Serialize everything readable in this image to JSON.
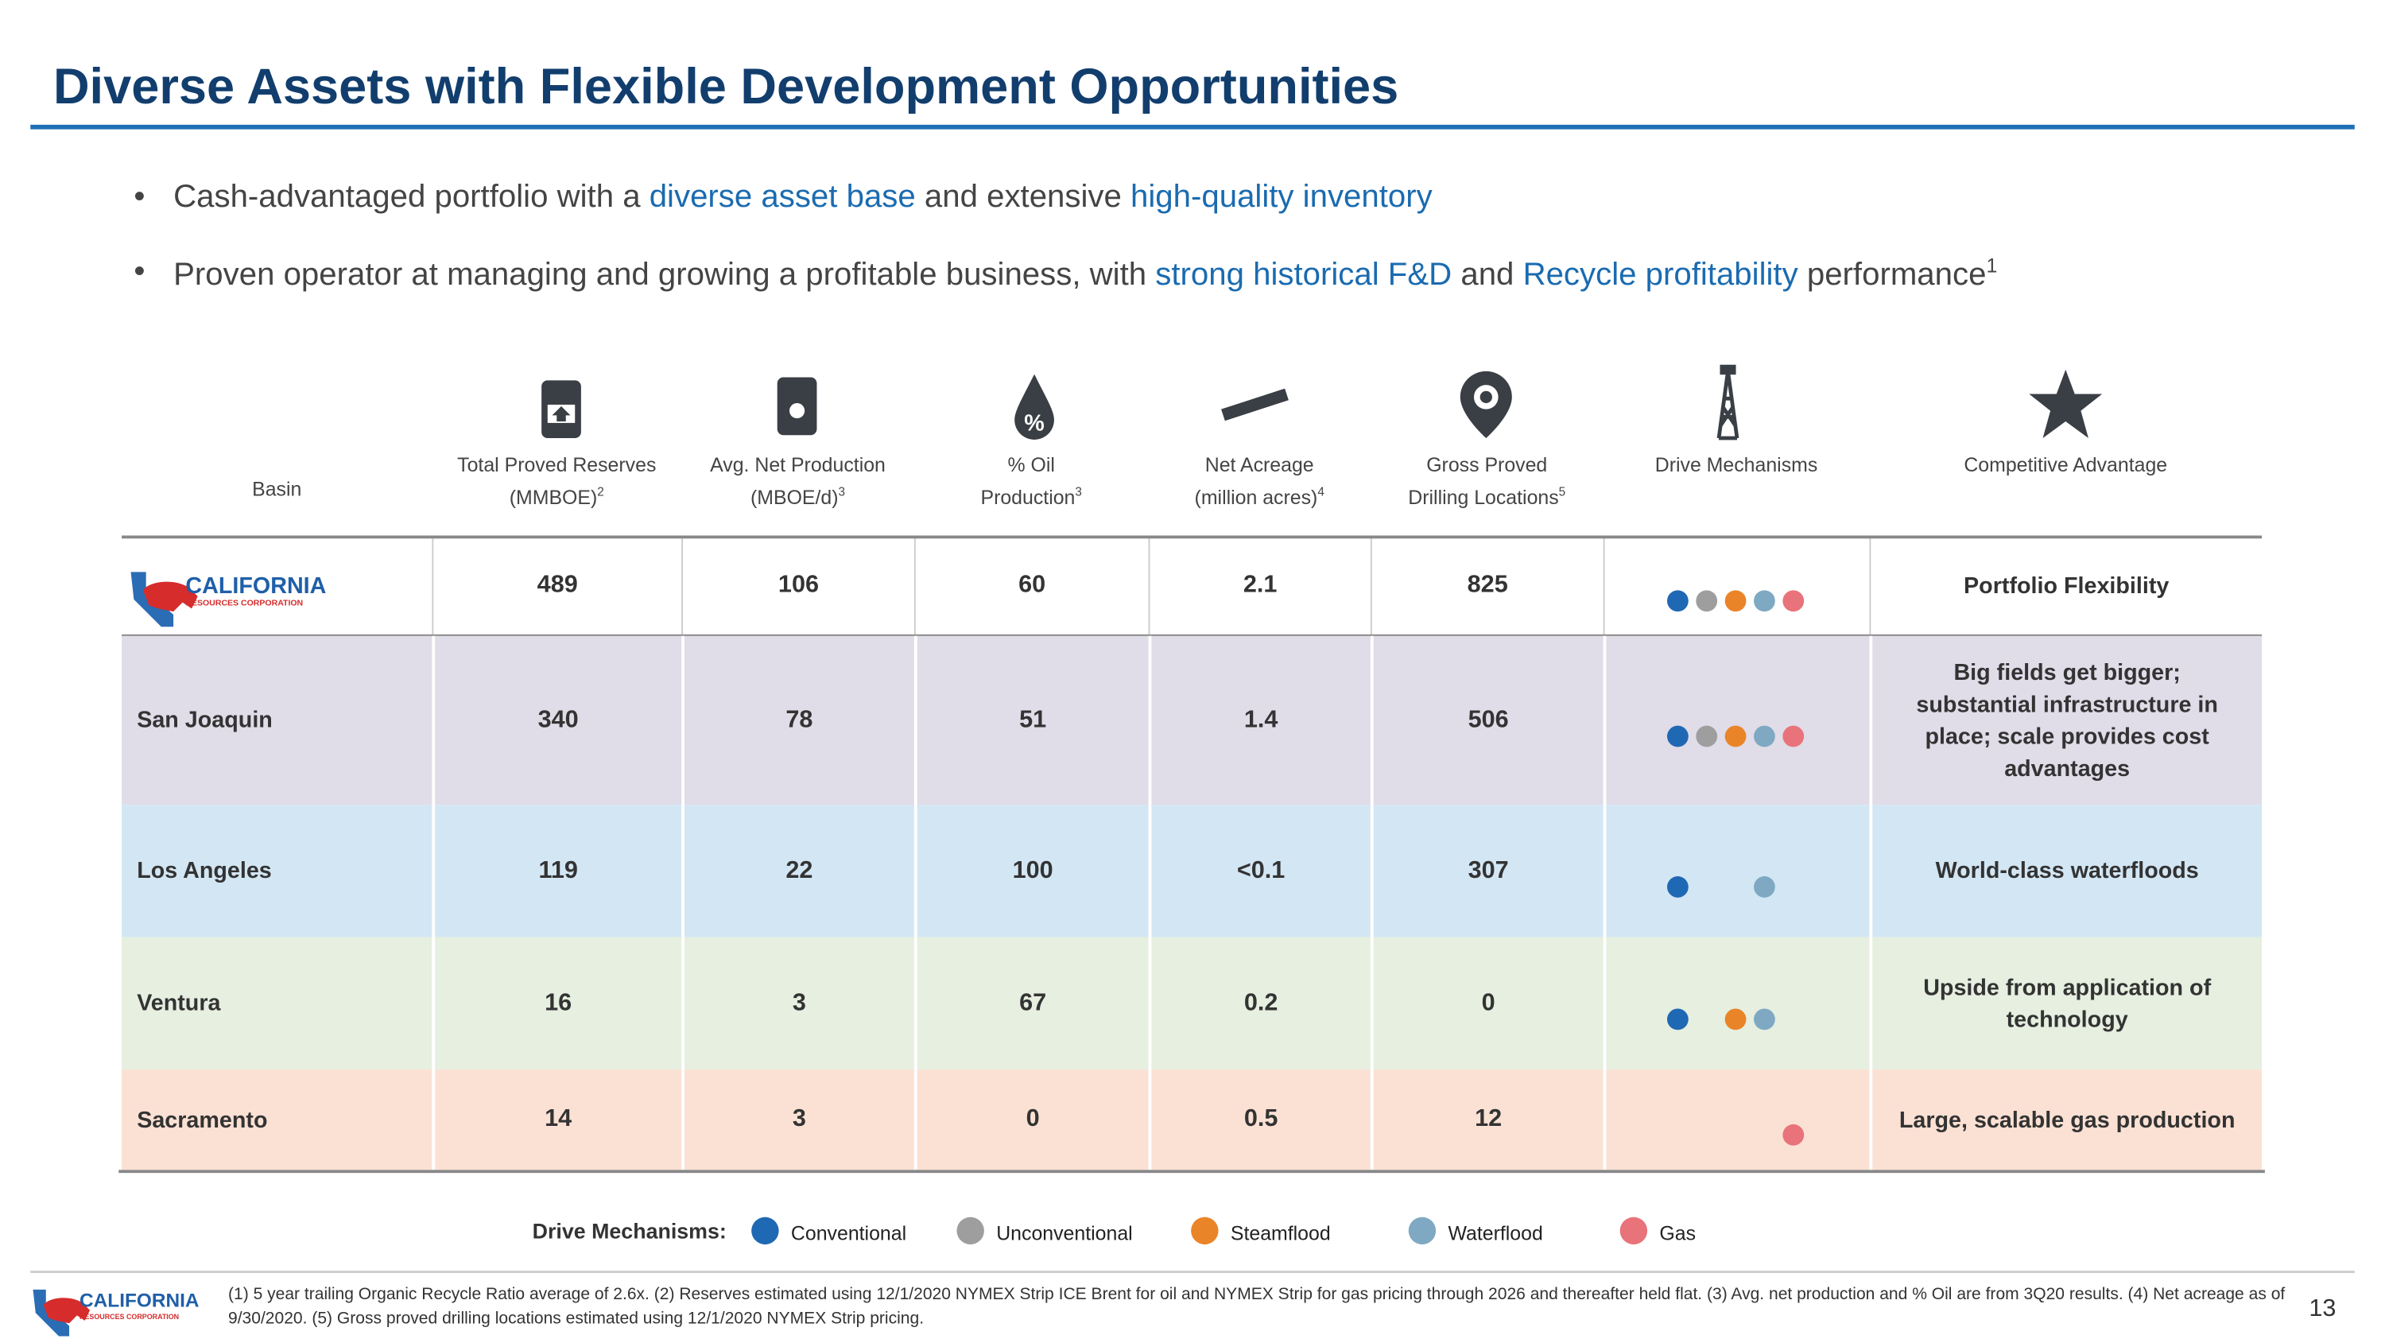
{
  "header": {
    "title": "Diverse Assets with Flexible Development Opportunities"
  },
  "bullets": [
    [
      {
        "text": "Cash-advantaged portfolio with a ",
        "style": "normal"
      },
      {
        "text": "diverse asset base",
        "style": "highlight"
      },
      {
        "text": " and extensive ",
        "style": "normal"
      },
      {
        "text": "high-quality inventory",
        "style": "highlight"
      }
    ],
    [
      {
        "text": "Proven operator at managing and growing a profitable business, with ",
        "style": "normal"
      },
      {
        "text": "strong historical F&D",
        "style": "highlight"
      },
      {
        "text": " and ",
        "style": "normal"
      },
      {
        "text": "Recycle profitability",
        "style": "highlight"
      },
      {
        "text": " performance",
        "style": "normal"
      },
      {
        "text": "1",
        "style": "sup"
      }
    ]
  ],
  "logo": {
    "line1": "CALIFORNIA",
    "line2": "RESOURCES CORPORATION"
  },
  "table": {
    "columns": [
      {
        "lines": [
          "Basin"
        ]
      },
      {
        "lines": [
          "Total Proved Reserves",
          "(MMBOE)"
        ],
        "note": "2"
      },
      {
        "lines": [
          "Avg. Net Production",
          "(MBOE/d)"
        ],
        "note": "3"
      },
      {
        "lines": [
          "% Oil",
          "Production"
        ],
        "note": "3"
      },
      {
        "lines": [
          "Net Acreage",
          "(million acres)"
        ],
        "note": "4"
      },
      {
        "lines": [
          "Gross Proved",
          "Drilling Locations"
        ],
        "note": "5"
      },
      {
        "lines": [
          "Drive Mechanisms"
        ]
      },
      {
        "lines": [
          "Competitive Advantage"
        ]
      }
    ],
    "rows": [
      {
        "basin": null,
        "values": [
          "489",
          "106",
          "60",
          "2.1",
          "825"
        ],
        "drive": [
          true,
          true,
          true,
          true,
          true
        ],
        "advantage": "Portfolio Flexibility",
        "color": "#ffffff"
      },
      {
        "basin": "San Joaquin",
        "values": [
          "340",
          "78",
          "51",
          "1.4",
          "506"
        ],
        "drive": [
          true,
          true,
          true,
          true,
          true
        ],
        "advantage": "Big fields get bigger; substantial infrastructure in place; scale provides cost advantages",
        "color": "#e0dce8"
      },
      {
        "basin": "Los Angeles",
        "values": [
          "119",
          "22",
          "100",
          "<0.1",
          "307"
        ],
        "drive": [
          true,
          false,
          false,
          true,
          false
        ],
        "advantage": "World-class waterfloods",
        "color": "#d3e6f4"
      },
      {
        "basin": "Ventura",
        "values": [
          "16",
          "3",
          "67",
          "0.2",
          "0"
        ],
        "drive": [
          true,
          false,
          true,
          true,
          false
        ],
        "advantage": "Upside from application of technology",
        "color": "#e6efe0"
      },
      {
        "basin": "Sacramento",
        "values": [
          "14",
          "3",
          "0",
          "0.5",
          "12"
        ],
        "drive": [
          false,
          false,
          false,
          false,
          true
        ],
        "advantage": "Large, scalable gas production",
        "color": "#fbe1d4"
      }
    ]
  },
  "legend": {
    "title": "Drive Mechanisms:",
    "mechanisms": [
      {
        "name": "Conventional",
        "color": "#1f68b4"
      },
      {
        "name": "Unconventional",
        "color": "#9e9e9e"
      },
      {
        "name": "Steamflood",
        "color": "#ea8428"
      },
      {
        "name": "Waterflood",
        "color": "#7fa9c3"
      },
      {
        "name": "Gas",
        "color": "#e8737a"
      }
    ]
  },
  "footnotes": "(1) 5 year trailing Organic Recycle Ratio average of 2.6x. (2) Reserves estimated using 12/1/2020 NYMEX Strip ICE Brent for oil and NYMEX Strip for gas pricing through 2026 and thereafter held flat. (3) Avg. net production and % Oil are from 3Q20 results. (4) Net acreage as of 9/30/2020. (5) Gross proved drilling locations estimated using 12/1/2020 NYMEX Strip pricing.",
  "page_number": "13"
}
